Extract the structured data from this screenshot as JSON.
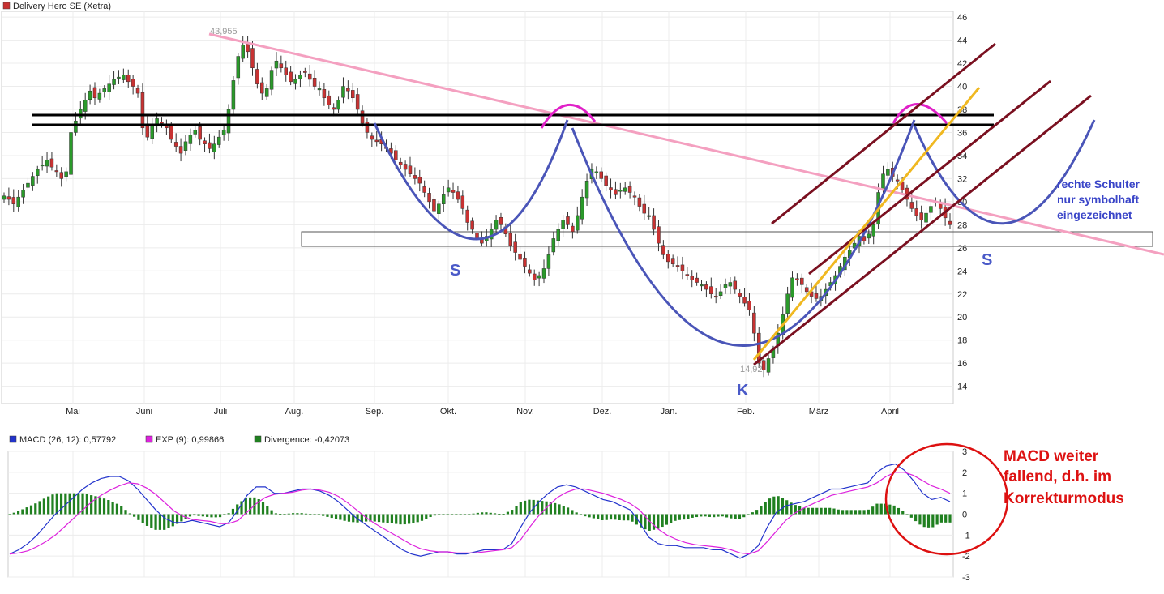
{
  "chart_data": [
    {
      "type": "candlestick",
      "title": "Delivery Hero SE (Xetra)",
      "ylim": [
        12.5,
        46.5
      ],
      "yticks": [
        14,
        16,
        18,
        20,
        22,
        24,
        26,
        28,
        30,
        32,
        34,
        36,
        38,
        40,
        42,
        44,
        46
      ],
      "months": [
        "Mai",
        "Juni",
        "Juli",
        "Aug.",
        "Sep.",
        "Okt.",
        "Nov.",
        "Dez.",
        "Jan.",
        "Feb.",
        "März",
        "April"
      ],
      "annotations_values": {
        "high_label": "43,955",
        "low_label": "14,92"
      },
      "closes": [
        30.5,
        30.2,
        29.8,
        30.4,
        31.0,
        31.6,
        32.2,
        32.8,
        33.2,
        33.6,
        33.0,
        32.6,
        32.0,
        32.6,
        36.0,
        37.0,
        38.0,
        38.8,
        39.6,
        39.0,
        39.4,
        39.8,
        40.2,
        40.6,
        40.8,
        41.0,
        40.4,
        40.0,
        39.4,
        36.4,
        35.6,
        36.6,
        37.2,
        36.8,
        36.4,
        35.4,
        34.8,
        34.2,
        35.2,
        35.8,
        36.2,
        35.4,
        35.0,
        34.6,
        35.0,
        35.6,
        36.2,
        38.0,
        40.5,
        42.6,
        43.6,
        43.0,
        41.6,
        40.2,
        39.4,
        39.8,
        41.4,
        42.2,
        41.6,
        41.0,
        40.4,
        40.6,
        41.0,
        41.2,
        40.6,
        40.0,
        39.8,
        39.0,
        38.4,
        38.0,
        38.8,
        40.0,
        39.6,
        39.0,
        38.0,
        36.8,
        36.0,
        35.4,
        35.2,
        35.0,
        34.6,
        34.2,
        33.6,
        33.2,
        32.8,
        32.4,
        32.0,
        31.6,
        30.8,
        30.0,
        29.2,
        29.8,
        30.6,
        31.2,
        30.8,
        30.2,
        29.4,
        28.2,
        27.6,
        26.8,
        26.4,
        27.0,
        27.6,
        28.4,
        28.0,
        27.2,
        26.2,
        25.6,
        25.0,
        24.4,
        23.8,
        23.2,
        23.6,
        24.2,
        25.4,
        26.8,
        27.6,
        28.4,
        28.0,
        27.4,
        28.8,
        30.4,
        31.8,
        32.8,
        32.6,
        32.0,
        31.4,
        31.0,
        30.6,
        31.0,
        31.2,
        30.8,
        30.4,
        29.6,
        29.0,
        28.8,
        27.6,
        26.4,
        25.4,
        24.8,
        24.6,
        24.4,
        24.0,
        23.6,
        23.2,
        23.0,
        22.8,
        22.4,
        22.0,
        21.8,
        22.2,
        22.8,
        23.0,
        22.4,
        21.8,
        21.2,
        20.6,
        18.6,
        16.0,
        15.4,
        16.4,
        17.2,
        18.6,
        20.2,
        22.0,
        23.4,
        23.2,
        22.8,
        22.2,
        21.8,
        21.6,
        21.8,
        22.4,
        23.0,
        23.6,
        24.4,
        25.2,
        25.8,
        26.4,
        27.0,
        26.6,
        27.2,
        28.0,
        30.8,
        32.4,
        32.8,
        32.2,
        31.8,
        31.0,
        30.2,
        29.4,
        28.8,
        28.4,
        29.0,
        29.6,
        30.0,
        29.4,
        28.6,
        28.0
      ],
      "overlay_text": [
        {
          "text": "S",
          "color": "#4a5ac8"
        },
        {
          "text": "K",
          "color": "#4a5ac8"
        },
        {
          "text": "S",
          "color": "#4a5ac8"
        },
        {
          "text": "rechte Schulter",
          "color": "#3a45c8"
        },
        {
          "text": "nur symbolhaft",
          "color": "#3a45c8"
        },
        {
          "text": "eingezeichnet",
          "color": "#3a45c8"
        }
      ],
      "colors": {
        "up": "#2a9a2a",
        "down": "#c83232",
        "hs_curve": "#4a55b8",
        "trend": "#f4a0c0",
        "channel": "#7a1020",
        "support": "#f0b820",
        "neckline": "#000000",
        "head_cap": "#e020c8"
      }
    },
    {
      "type": "line",
      "ylim": [
        -3,
        3
      ],
      "yticks": [
        -3,
        -2,
        -1,
        0,
        1,
        2,
        3
      ],
      "legend": [
        {
          "name": "MACD (26, 12): 0,57792",
          "color": "#2233cc"
        },
        {
          "name": "EXP (9): 0,99866",
          "color": "#dd22dd"
        },
        {
          "name": "Divergence: -0,42073",
          "color": "#208020"
        }
      ],
      "macd": [
        -1.9,
        -1.7,
        -1.4,
        -1.0,
        -0.5,
        0.0,
        0.4,
        0.8,
        1.2,
        1.5,
        1.7,
        1.8,
        1.8,
        1.6,
        1.2,
        0.7,
        0.2,
        -0.2,
        -0.4,
        -0.4,
        -0.3,
        -0.4,
        -0.5,
        -0.6,
        -0.4,
        0.2,
        0.9,
        1.3,
        1.3,
        1.0,
        1.0,
        1.1,
        1.2,
        1.2,
        1.1,
        0.9,
        0.6,
        0.2,
        -0.2,
        -0.5,
        -0.8,
        -1.1,
        -1.4,
        -1.7,
        -1.9,
        -2.0,
        -1.9,
        -1.8,
        -1.8,
        -1.9,
        -1.9,
        -1.8,
        -1.7,
        -1.7,
        -1.7,
        -1.4,
        -0.6,
        0.1,
        0.6,
        1.0,
        1.3,
        1.4,
        1.3,
        1.1,
        0.9,
        0.7,
        0.6,
        0.4,
        0.2,
        -0.4,
        -1.1,
        -1.4,
        -1.5,
        -1.5,
        -1.6,
        -1.6,
        -1.6,
        -1.7,
        -1.7,
        -1.9,
        -2.1,
        -1.9,
        -1.5,
        -0.6,
        0.1,
        0.4,
        0.5,
        0.6,
        0.8,
        1.0,
        1.2,
        1.2,
        1.3,
        1.4,
        1.5,
        2.0,
        2.3,
        2.4,
        2.1,
        1.6,
        1.0,
        0.7,
        0.8,
        0.6
      ],
      "exp": [
        -1.9,
        -1.85,
        -1.75,
        -1.55,
        -1.3,
        -1.0,
        -0.6,
        -0.2,
        0.2,
        0.6,
        0.9,
        1.15,
        1.35,
        1.5,
        1.45,
        1.25,
        0.95,
        0.55,
        0.15,
        -0.1,
        -0.25,
        -0.3,
        -0.35,
        -0.45,
        -0.45,
        -0.3,
        0.1,
        0.5,
        0.8,
        0.95,
        1.0,
        1.05,
        1.15,
        1.2,
        1.15,
        1.05,
        0.85,
        0.55,
        0.2,
        -0.15,
        -0.45,
        -0.7,
        -0.95,
        -1.2,
        -1.45,
        -1.65,
        -1.75,
        -1.8,
        -1.8,
        -1.85,
        -1.85,
        -1.85,
        -1.8,
        -1.75,
        -1.7,
        -1.6,
        -1.2,
        -0.6,
        -0.05,
        0.4,
        0.8,
        1.05,
        1.2,
        1.2,
        1.1,
        1.0,
        0.85,
        0.7,
        0.5,
        0.2,
        -0.3,
        -0.7,
        -1.0,
        -1.2,
        -1.35,
        -1.45,
        -1.5,
        -1.55,
        -1.6,
        -1.7,
        -1.85,
        -1.9,
        -1.75,
        -1.3,
        -0.8,
        -0.3,
        0.05,
        0.3,
        0.5,
        0.7,
        0.9,
        1.0,
        1.1,
        1.2,
        1.3,
        1.5,
        1.8,
        2.0,
        2.0,
        1.85,
        1.6,
        1.35,
        1.2,
        1.0
      ],
      "annotation": {
        "lines": [
          "MACD weiter",
          "fallend, d.h. im",
          "Korrekturmodus"
        ],
        "color": "#dd1111"
      }
    }
  ]
}
